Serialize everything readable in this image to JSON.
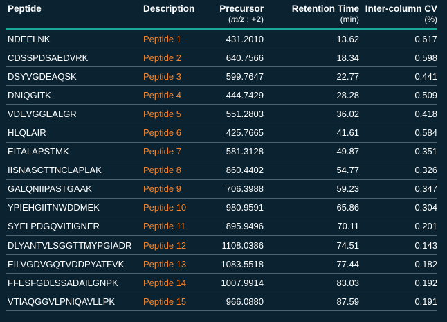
{
  "headers": {
    "peptide": "Peptide",
    "description": "Description",
    "precursor": "Precursor",
    "precursor_sub_italic": "m/z",
    "precursor_sub_rest": " ; +2)",
    "retention": "Retention Time",
    "retention_sub": "(min)",
    "cv": "Inter-column CV",
    "cv_sub": "(%)"
  },
  "colors": {
    "background": "#0b2330",
    "accent": "#19a89a",
    "description_text": "#f5822a"
  },
  "rows": [
    {
      "peptide": "NDEELNK",
      "description": "Peptide 1",
      "precursor": "431.2010",
      "rt": "13.62",
      "cv": "0.617"
    },
    {
      "peptide": "CDSSPDSAEDVRK",
      "description": "Peptide 2",
      "precursor": "640.7566",
      "rt": "18.34",
      "cv": "0.598"
    },
    {
      "peptide": "DSYVGDEAQSK",
      "description": "Peptide 3",
      "precursor": "599.7647",
      "rt": "22.77",
      "cv": "0.441"
    },
    {
      "peptide": "DNIQGITK",
      "description": "Peptide 4",
      "precursor": "444.7429",
      "rt": "28.28",
      "cv": "0.509"
    },
    {
      "peptide": "VDEVGGEALGR",
      "description": "Peptide 5",
      "precursor": "551.2803",
      "rt": "36.02",
      "cv": "0.418"
    },
    {
      "peptide": "HLQLAIR",
      "description": "Peptide 6",
      "precursor": "425.7665",
      "rt": "41.61",
      "cv": "0.584"
    },
    {
      "peptide": "EITALAPSTMK",
      "description": "Peptide 7",
      "precursor": "581.3128",
      "rt": "49.87",
      "cv": "0.351"
    },
    {
      "peptide": "IISNASCTTNCLAPLAK",
      "description": "Peptide 8",
      "precursor": "860.4402",
      "rt": "54.77",
      "cv": "0.326"
    },
    {
      "peptide": "GALQNIIPASTGAAK",
      "description": "Peptide 9",
      "precursor": "706.3988",
      "rt": "59.23",
      "cv": "0.347"
    },
    {
      "peptide": "YPIEHGIITNWDDMEK",
      "description": "Peptide 10",
      "precursor": "980.9591",
      "rt": "65.86",
      "cv": "0.304"
    },
    {
      "peptide": "SYELPDGQVITIGNER",
      "description": "Peptide 11",
      "precursor": "895.9496",
      "rt": "70.11",
      "cv": "0.201"
    },
    {
      "peptide": "DLYANTVLSGGTTMYPGIADR",
      "description": "Peptide 12",
      "precursor": "1108.0386",
      "rt": "74.51",
      "cv": "0.143"
    },
    {
      "peptide": "EILVGDVGQTVDDPYATFVK",
      "description": "Peptide 13",
      "precursor": "1083.5518",
      "rt": "77.44",
      "cv": "0.182"
    },
    {
      "peptide": "FFESFGDLSSADAILGNPK",
      "description": "Peptide 14",
      "precursor": "1007.9914",
      "rt": "83.03",
      "cv": "0.192"
    },
    {
      "peptide": "VTIAQGGVLPNIQAVLLPK",
      "description": "Peptide 15",
      "precursor": "966.0880",
      "rt": "87.59",
      "cv": "0.191"
    }
  ]
}
